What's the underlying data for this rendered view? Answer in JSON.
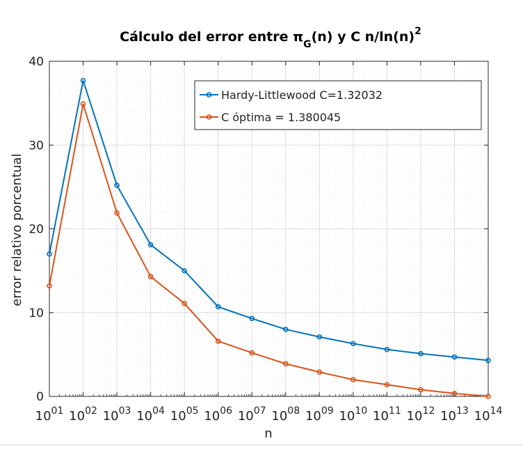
{
  "chart_data": {
    "type": "line",
    "title": {
      "main": "Cálculo del error entre π",
      "sub": "G",
      "rest": "(n) y C n/ln(n)",
      "sup": "2"
    },
    "xlabel": "n",
    "ylabel": "error relativo porcentual",
    "x_scale": "log",
    "x_base": "10",
    "x": [
      10.0,
      100.0,
      1000.0,
      10000.0,
      100000.0,
      1000000.0,
      10000000.0,
      100000000.0,
      1000000000.0,
      10000000000.0,
      100000000000.0,
      1000000000000.0,
      10000000000000.0,
      100000000000000.0
    ],
    "x_tick_exponents": [
      "01",
      "02",
      "03",
      "04",
      "05",
      "06",
      "07",
      "08",
      "09",
      "10",
      "11",
      "12",
      "13",
      "14"
    ],
    "ylim": [
      0,
      40
    ],
    "y_ticks": [
      "0",
      "10",
      "20",
      "30",
      "40"
    ],
    "grid": true,
    "minor_grid": true,
    "legend_position": "top-right",
    "series": [
      {
        "name": "Hardy-Littlewood C=1.32032",
        "color": "#0072BD",
        "values": [
          17.0,
          37.7,
          25.2,
          18.1,
          15.0,
          10.7,
          9.3,
          8.0,
          7.1,
          6.3,
          5.6,
          5.1,
          4.7,
          4.3
        ]
      },
      {
        "name": "C óptima = 1.380045",
        "color": "#D95319",
        "values": [
          13.2,
          34.9,
          21.9,
          14.3,
          11.1,
          6.6,
          5.2,
          3.9,
          2.9,
          2.0,
          1.4,
          0.8,
          0.35,
          0.0
        ]
      }
    ]
  }
}
